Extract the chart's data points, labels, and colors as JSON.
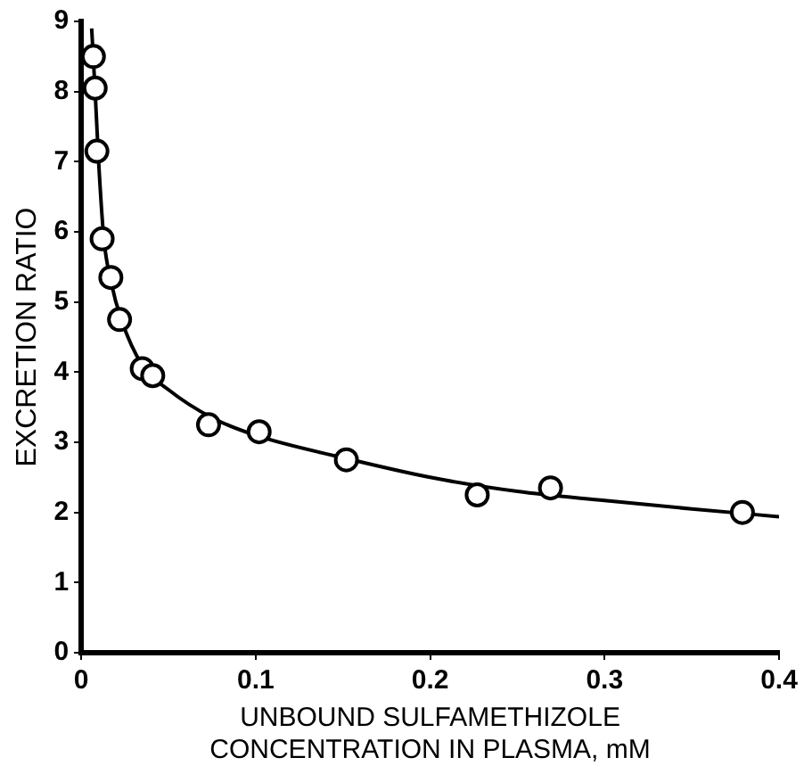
{
  "chart_data": {
    "type": "scatter",
    "xlabel": "UNBOUND SULFAMETHIZOLE\nCONCENTRATION IN PLASMA, mM",
    "ylabel": "EXCRETION RATIO",
    "xlim": [
      0,
      0.4
    ],
    "xticks": [
      0,
      0.1,
      0.2,
      0.3,
      0.4
    ],
    "ylim": [
      0,
      9
    ],
    "yticks": [
      0,
      1,
      2,
      3,
      4,
      5,
      6,
      7,
      8,
      9
    ],
    "grid": false,
    "legend": false,
    "series": [
      {
        "marker": "circle",
        "color": "#000000",
        "x": [
          0.007,
          0.008,
          0.009,
          0.012,
          0.017,
          0.022,
          0.035,
          0.041,
          0.073,
          0.102,
          0.152,
          0.227,
          0.269,
          0.379
        ],
        "values": [
          8.5,
          8.05,
          7.15,
          5.9,
          5.35,
          4.75,
          4.05,
          3.95,
          3.25,
          3.15,
          2.75,
          2.25,
          2.35,
          2.0
        ]
      },
      {
        "type": "line",
        "marker": "none",
        "line_style": "solid",
        "color": "#000000",
        "x": [
          0.006,
          0.008,
          0.01,
          0.013,
          0.017,
          0.023,
          0.035,
          0.05,
          0.075,
          0.1,
          0.15,
          0.2,
          0.25,
          0.3,
          0.35,
          0.4
        ],
        "values": [
          8.9,
          8.0,
          7.0,
          5.9,
          5.3,
          4.75,
          4.1,
          3.75,
          3.35,
          3.1,
          2.78,
          2.5,
          2.3,
          2.17,
          2.05,
          1.94
        ]
      }
    ]
  }
}
